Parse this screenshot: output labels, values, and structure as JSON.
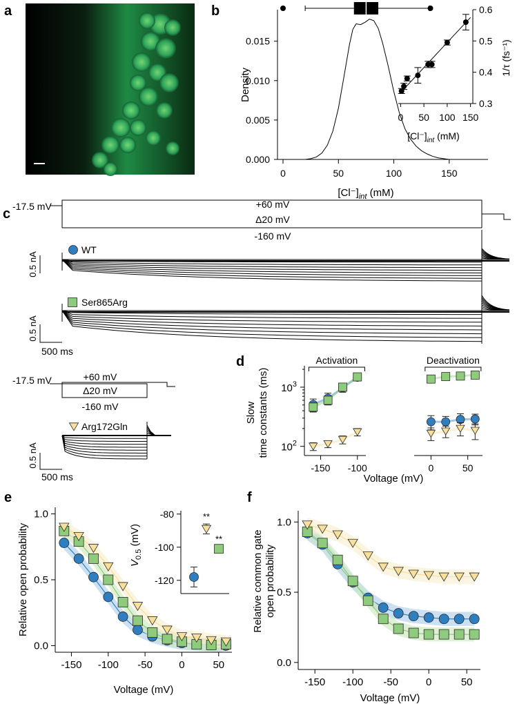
{
  "panel_labels": {
    "a": "a",
    "b": "b",
    "c": "c",
    "d": "d",
    "e": "e",
    "f": "f"
  },
  "colors": {
    "wt": "#2f7fc0",
    "wt_light": "#a9cbe9",
    "ser": "#8fcb7c",
    "ser_light": "#c9e7b9",
    "arg": "#f7df9c",
    "arg_light": "#f8ecc8",
    "micrograph": "#2fb060"
  },
  "panel_a": {
    "scale_bar": "present"
  },
  "panel_c": {
    "hold_label": "-17.5 mV",
    "top_label": "+60 mV",
    "step_label": "Δ20 mV",
    "bottom_label": "-160 mV",
    "scale_current": "0.5 nA",
    "scale_time": "500 ms",
    "wt_label": "WT",
    "ser_label": "Ser865Arg",
    "arg_label": "Arg172Gln"
  },
  "chart_data": [
    {
      "id": "b_density",
      "type": "line",
      "xlabel": "[Cl⁻]",
      "xlabel_sub": "int",
      "xlabel_unit": " (mM)",
      "ylabel": "Density",
      "xlim": [
        -5,
        185
      ],
      "ylim": [
        0,
        0.019
      ],
      "xticks": [
        0,
        50,
        100,
        150
      ],
      "yticks": [
        {
          "v": 0,
          "label": "0.000"
        },
        {
          "v": 0.005,
          "label": "0.005"
        },
        {
          "v": 0.01,
          "label": "0.010"
        },
        {
          "v": 0.015,
          "label": "0.015"
        }
      ],
      "x": [
        20,
        25,
        30,
        35,
        40,
        45,
        50,
        55,
        60,
        63,
        66,
        70,
        74,
        78,
        82,
        86,
        90,
        95,
        100,
        105,
        110,
        115,
        120,
        125,
        130,
        135,
        140,
        145,
        150,
        160,
        170
      ],
      "y": [
        0,
        0.0001,
        0.0003,
        0.0008,
        0.0018,
        0.0036,
        0.0065,
        0.0105,
        0.0146,
        0.0165,
        0.0172,
        0.0171,
        0.0174,
        0.0178,
        0.0176,
        0.0166,
        0.0147,
        0.0118,
        0.0086,
        0.0059,
        0.0039,
        0.0026,
        0.0017,
        0.0011,
        0.0007,
        0.0004,
        0.0002,
        0.0001,
        0,
        0,
        0
      ],
      "boxplot": {
        "whisker_low": 20,
        "q1": 64,
        "median": 75,
        "q3": 86,
        "whisker_high": 132,
        "outliers": [
          0,
          133
        ]
      }
    },
    {
      "id": "b_inset",
      "type": "scatter",
      "xlabel": "[Cl⁻]",
      "xlabel_sub": "int",
      "xlabel_unit": " (mM)",
      "ylabel": "1/τ (fs⁻¹)",
      "xlim": [
        -5,
        155
      ],
      "ylim": [
        0.3,
        0.6
      ],
      "xticks": [
        0,
        50,
        100,
        150
      ],
      "yticks": [
        0.3,
        0.4,
        0.5,
        0.6
      ],
      "x": [
        2,
        7,
        14,
        37,
        59,
        67,
        100,
        140
      ],
      "y": [
        0.34,
        0.355,
        0.38,
        0.39,
        0.425,
        0.425,
        0.495,
        0.56
      ],
      "err": [
        0.008,
        0.01,
        0.008,
        0.025,
        0.01,
        0.01,
        0.008,
        0.025
      ],
      "fit": {
        "x": [
          0,
          150
        ],
        "y": [
          0.335,
          0.575
        ]
      }
    },
    {
      "id": "d_time_constants",
      "type": "scatter",
      "xlabel": "Voltage (mV)",
      "ylabel_line1": "Slow",
      "ylabel_line2": "time constants (ms)",
      "yscale": "log",
      "ylim": [
        70,
        3000
      ],
      "xlim": [
        -172,
        70
      ],
      "xticks": [
        -150,
        -100,
        0,
        50
      ],
      "yticks": [
        {
          "v": 100,
          "label": "10",
          "exp": "2"
        },
        {
          "v": 1000,
          "label": "10",
          "exp": "3"
        }
      ],
      "activation_label": "Activation",
      "deactivation_label": "Deactivation",
      "series": [
        {
          "name": "WT",
          "color_key": "wt",
          "marker": "circle",
          "x": [
            -160,
            -140,
            -120,
            -100,
            0,
            20,
            40,
            60
          ],
          "y": [
            510,
            650,
            970,
            1470,
            260,
            260,
            285,
            290
          ],
          "err": [
            120,
            140,
            150,
            200,
            70,
            60,
            70,
            60
          ]
        },
        {
          "name": "Ser865Arg",
          "color_key": "ser",
          "marker": "square",
          "x": [
            -160,
            -140,
            -120,
            -100,
            0,
            20,
            40,
            60
          ],
          "y": [
            460,
            600,
            1000,
            1490,
            1370,
            1510,
            1540,
            1600
          ],
          "err": [
            80,
            100,
            150,
            160,
            150,
            120,
            140,
            200
          ]
        },
        {
          "name": "Arg172Gln",
          "color_key": "arg",
          "marker": "triangle",
          "x": [
            -160,
            -140,
            -120,
            -100,
            0,
            20,
            40,
            60
          ],
          "y": [
            100,
            110,
            130,
            175,
            165,
            180,
            200,
            185
          ],
          "err": [
            15,
            15,
            20,
            25,
            40,
            40,
            50,
            55
          ]
        }
      ]
    },
    {
      "id": "e_open_probability",
      "type": "scatter",
      "xlabel": "Voltage (mV)",
      "ylabel": "Relative open probability",
      "xlim": [
        -172,
        68
      ],
      "ylim": [
        -0.05,
        1.05
      ],
      "xticks": [
        -150,
        -100,
        -50,
        0,
        50
      ],
      "yticks": [
        {
          "v": 0,
          "label": "0.0"
        },
        {
          "v": 0.5,
          "label": "0.5"
        },
        {
          "v": 1,
          "label": "1.0"
        }
      ],
      "series": [
        {
          "name": "WT",
          "color_key": "wt",
          "marker": "circle",
          "x": [
            -160,
            -140,
            -120,
            -100,
            -80,
            -60,
            -40,
            -20,
            0,
            20,
            40,
            60
          ],
          "y": [
            0.78,
            0.66,
            0.52,
            0.37,
            0.22,
            0.12,
            0.07,
            0.04,
            0.02,
            0.01,
            0.005,
            0.0
          ]
        },
        {
          "name": "Ser865Arg",
          "color_key": "ser",
          "marker": "square",
          "x": [
            -160,
            -140,
            -120,
            -100,
            -80,
            -60,
            -40,
            -20,
            0,
            20,
            40,
            60
          ],
          "y": [
            0.87,
            0.79,
            0.66,
            0.5,
            0.33,
            0.19,
            0.1,
            0.05,
            0.03,
            0.01,
            0.005,
            0.01
          ]
        },
        {
          "name": "Arg172Gln",
          "color_key": "arg",
          "marker": "triangle",
          "x": [
            -160,
            -140,
            -120,
            -100,
            -80,
            -60,
            -40,
            -20,
            0,
            20,
            40,
            60
          ],
          "y": [
            0.9,
            0.83,
            0.74,
            0.6,
            0.45,
            0.3,
            0.19,
            0.12,
            0.07,
            0.06,
            0.04,
            0.03
          ]
        }
      ],
      "inset": {
        "ylabel": "V",
        "ylabel_sub": "0.5",
        "ylabel_unit": " (mV)",
        "ylim": [
          -128,
          -78
        ],
        "yticks": [
          -80,
          -100,
          -120
        ],
        "points": [
          {
            "name": "WT",
            "color_key": "wt",
            "marker": "circle",
            "x": 0,
            "y": -118,
            "err": 6
          },
          {
            "name": "Arg172Gln",
            "color_key": "arg",
            "marker": "triangle",
            "x": 1,
            "y": -89,
            "err": 3,
            "sig": "**"
          },
          {
            "name": "Ser865Arg",
            "color_key": "ser",
            "marker": "square",
            "x": 2,
            "y": -101,
            "err": 1.5,
            "sig": "**"
          }
        ]
      }
    },
    {
      "id": "f_common_gate",
      "type": "scatter",
      "xlabel": "Voltage (mV)",
      "ylabel_line1": "Relative common gate",
      "ylabel_line2": "open probability",
      "xlim": [
        -172,
        68
      ],
      "ylim": [
        -0.05,
        1.08
      ],
      "xticks": [
        -150,
        -100,
        -50,
        0,
        50
      ],
      "yticks": [
        {
          "v": 0,
          "label": "0.0"
        },
        {
          "v": 0.5,
          "label": "0.5"
        },
        {
          "v": 1,
          "label": "1.0"
        }
      ],
      "series": [
        {
          "name": "WT",
          "color_key": "wt",
          "marker": "circle",
          "x": [
            -160,
            -140,
            -120,
            -100,
            -80,
            -60,
            -40,
            -20,
            0,
            20,
            40,
            60
          ],
          "y": [
            0.92,
            0.84,
            0.7,
            0.57,
            0.46,
            0.39,
            0.35,
            0.33,
            0.32,
            0.31,
            0.31,
            0.31
          ]
        },
        {
          "name": "Ser865Arg",
          "color_key": "ser",
          "marker": "square",
          "x": [
            -160,
            -140,
            -120,
            -100,
            -80,
            -60,
            -40,
            -20,
            0,
            20,
            40,
            60
          ],
          "y": [
            0.93,
            0.85,
            0.73,
            0.58,
            0.44,
            0.31,
            0.24,
            0.21,
            0.2,
            0.2,
            0.2,
            0.2
          ]
        },
        {
          "name": "Arg172Gln",
          "color_key": "arg",
          "marker": "triangle",
          "x": [
            -160,
            -140,
            -120,
            -100,
            -80,
            -60,
            -40,
            -20,
            0,
            20,
            40,
            60
          ],
          "y": [
            0.98,
            0.95,
            0.91,
            0.85,
            0.76,
            0.68,
            0.65,
            0.63,
            0.62,
            0.61,
            0.61,
            0.61
          ]
        }
      ]
    }
  ]
}
